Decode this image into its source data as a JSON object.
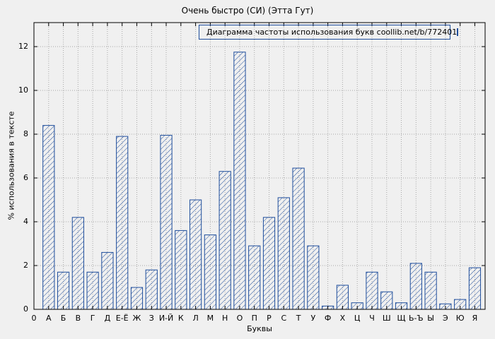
{
  "chart_data": {
    "type": "bar",
    "title": "Очень быстро (СИ) (Этта Гут)",
    "legend": "Диаграмма частоты использования букв coollib.net/b/772401",
    "xlabel": "Буквы",
    "ylabel": "% использования в тексте",
    "x_origin_label": "0",
    "categories": [
      "А",
      "Б",
      "В",
      "Г",
      "Д",
      "Е-Ё",
      "Ж",
      "З",
      "И-Й",
      "К",
      "Л",
      "М",
      "Н",
      "О",
      "П",
      "Р",
      "С",
      "Т",
      "У",
      "Ф",
      "Х",
      "Ц",
      "Ч",
      "Ш",
      "Щ",
      "Ь-Ъ",
      "Ы",
      "Э",
      "Ю",
      "Я"
    ],
    "values": [
      8.4,
      1.7,
      4.2,
      1.7,
      2.6,
      7.9,
      1.0,
      1.8,
      7.95,
      3.6,
      5.0,
      3.4,
      6.3,
      11.75,
      2.9,
      4.2,
      5.1,
      6.45,
      2.9,
      0.15,
      1.1,
      0.3,
      1.7,
      0.8,
      0.3,
      2.1,
      1.7,
      0.25,
      0.45,
      1.9
    ],
    "ylim": [
      0,
      13
    ],
    "yticks": [
      0,
      2,
      4,
      6,
      8,
      10,
      12
    ],
    "grid": true,
    "legend_position": "top-right",
    "colors": {
      "bar_edge": "#1f4e9c",
      "hatch": "#1f4e9c",
      "grid": "#a8a8a8",
      "frame": "#000000",
      "background": "#f0f0f0",
      "text": "#000000"
    }
  }
}
